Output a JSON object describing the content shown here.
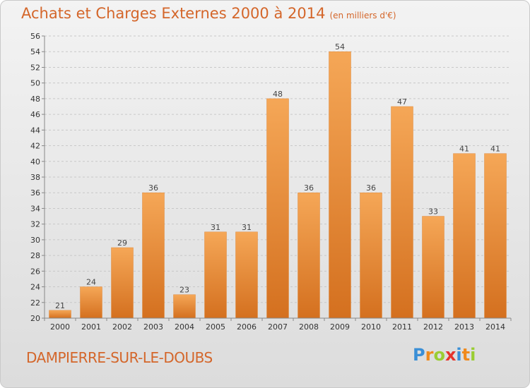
{
  "chart_data": {
    "type": "bar",
    "title": "Achats et Charges Externes 2000 à 2014",
    "subtitle": "(en milliers d'€)",
    "categories": [
      "2000",
      "2001",
      "2002",
      "2003",
      "2004",
      "2005",
      "2006",
      "2007",
      "2008",
      "2009",
      "2010",
      "2011",
      "2012",
      "2013",
      "2014"
    ],
    "values": [
      21,
      24,
      29,
      36,
      23,
      31,
      31,
      48,
      36,
      54,
      36,
      47,
      33,
      41,
      41
    ],
    "ylim": [
      20,
      56
    ],
    "ytick_step": 2,
    "grid": true,
    "bar_color_light": "#f5a757",
    "bar_color_dark": "#d4701f"
  },
  "commune": "DAMPIERRE-SUR-LE-DOUBS",
  "logo": {
    "letters": [
      "P",
      "r",
      "o",
      "x",
      "i",
      "t",
      "i"
    ],
    "colors": [
      "#3a8fd6",
      "#f08a1c",
      "#9acd32",
      "#e6332a",
      "#3a8fd6",
      "#f08a1c",
      "#9acd32"
    ]
  }
}
